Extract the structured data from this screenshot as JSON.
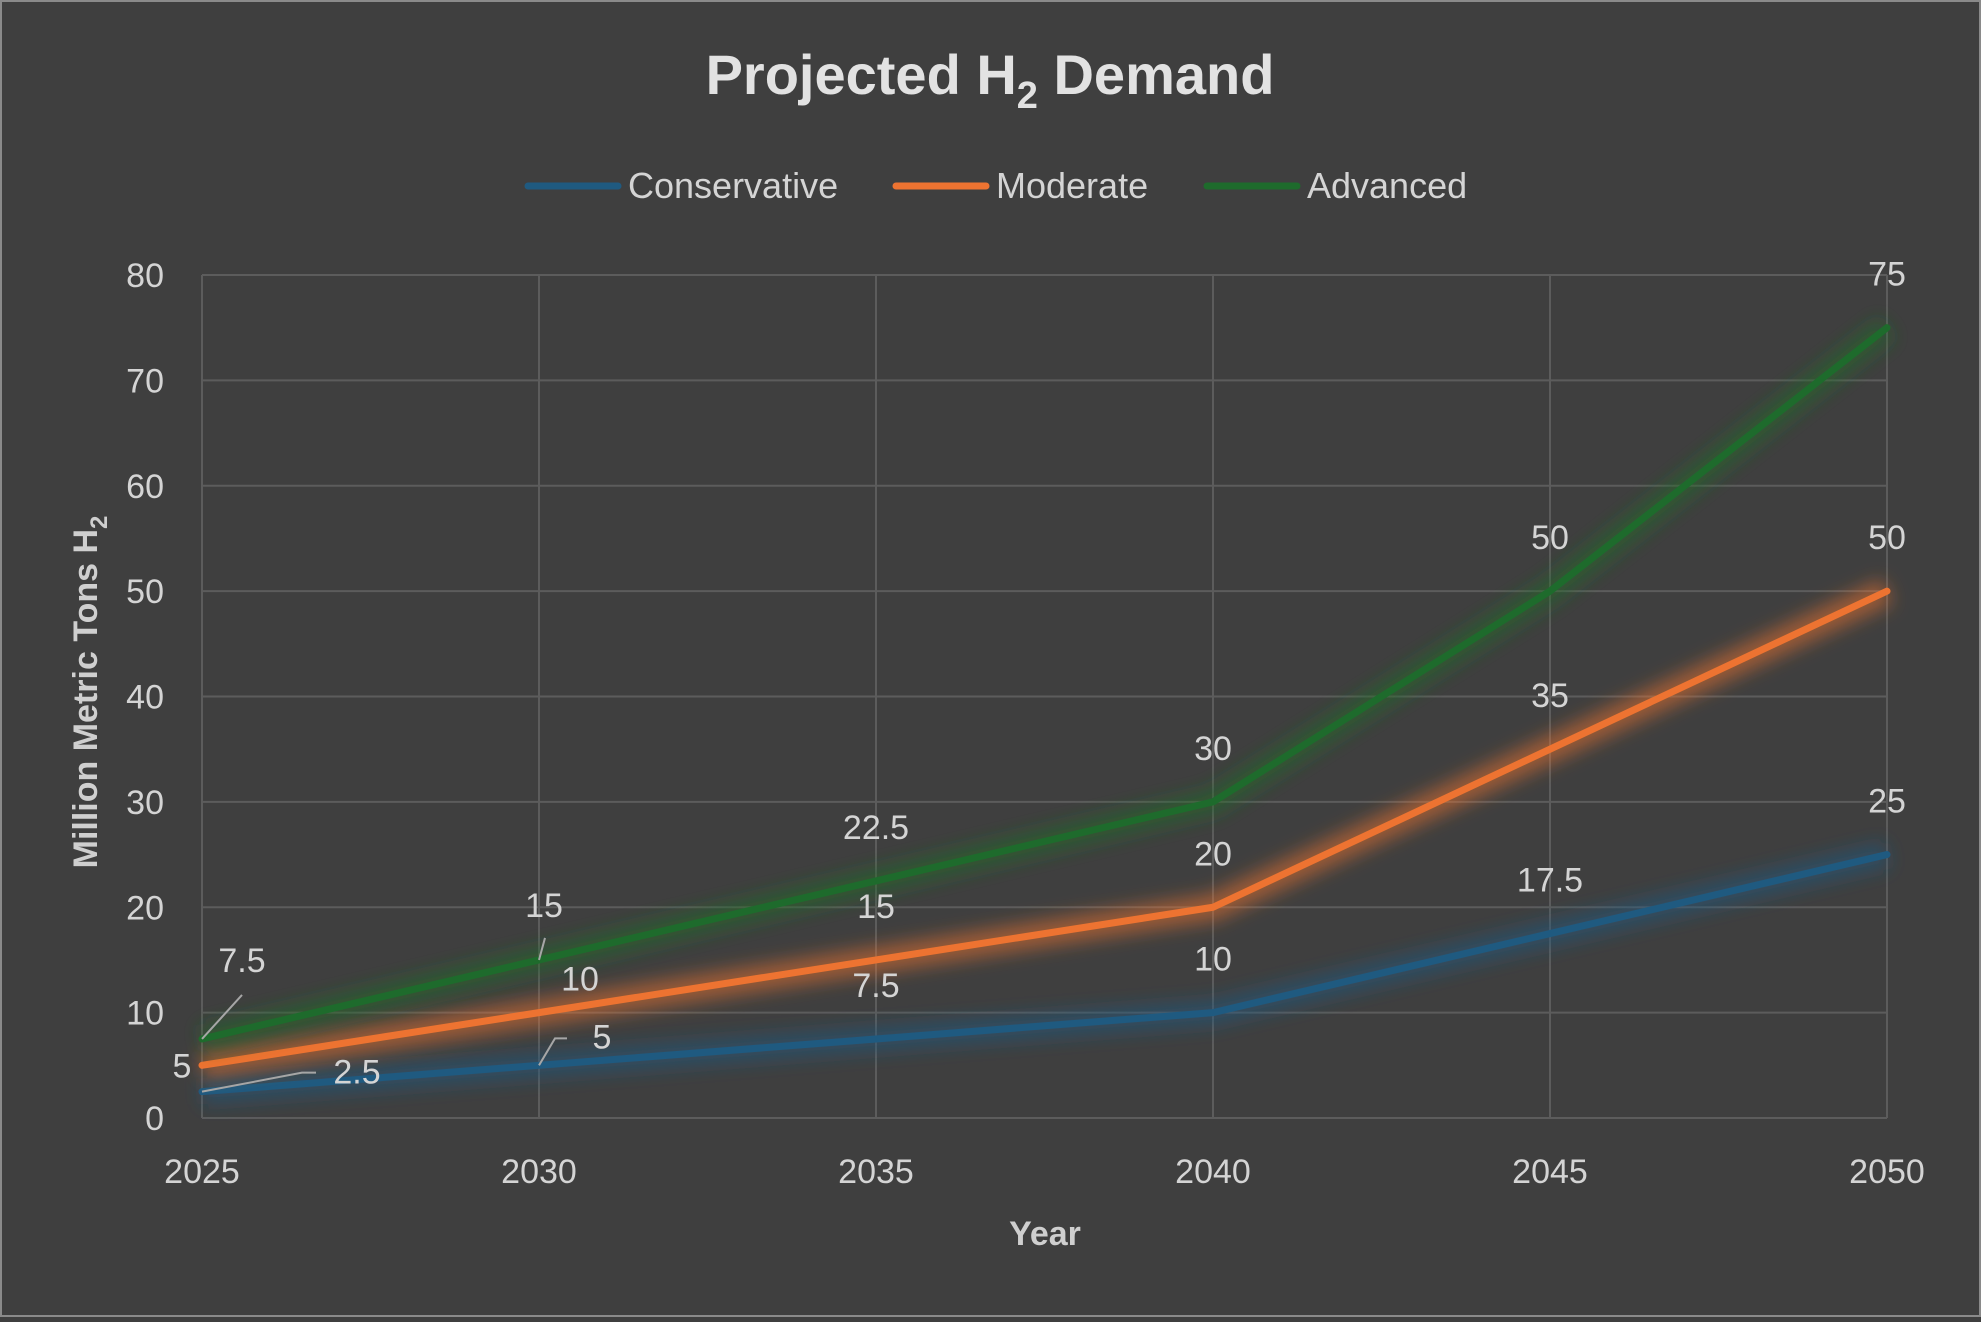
{
  "chart_data": {
    "type": "line",
    "title": "Projected H",
    "title_sub": "2",
    "title_suffix": " Demand",
    "xlabel": "Year",
    "ylabel": "Million Metric Tons H",
    "ylabel_sub": "2",
    "categories": [
      "2025",
      "2030",
      "2035",
      "2040",
      "2045",
      "2050"
    ],
    "ylim": [
      0,
      80
    ],
    "yticks": [
      "0",
      "10",
      "20",
      "30",
      "40",
      "50",
      "60",
      "70",
      "80"
    ],
    "grid": true,
    "legend_position": "top",
    "series": [
      {
        "name": "Conservative",
        "color": "#1f5a80",
        "values": [
          2.5,
          5,
          7.5,
          10,
          17.5,
          25
        ],
        "labels": [
          "2.5",
          "5",
          "7.5",
          "10",
          "17.5",
          "25"
        ]
      },
      {
        "name": "Moderate",
        "color": "#ed7331",
        "values": [
          5,
          10,
          15,
          20,
          35,
          50
        ],
        "labels": [
          "5",
          "10",
          "15",
          "20",
          "35",
          "50"
        ]
      },
      {
        "name": "Advanced",
        "color": "#1e6b2c",
        "values": [
          7.5,
          15,
          22.5,
          30,
          50,
          75
        ],
        "labels": [
          "7.5",
          "15",
          "22.5",
          "30",
          "50",
          "75"
        ]
      }
    ]
  }
}
